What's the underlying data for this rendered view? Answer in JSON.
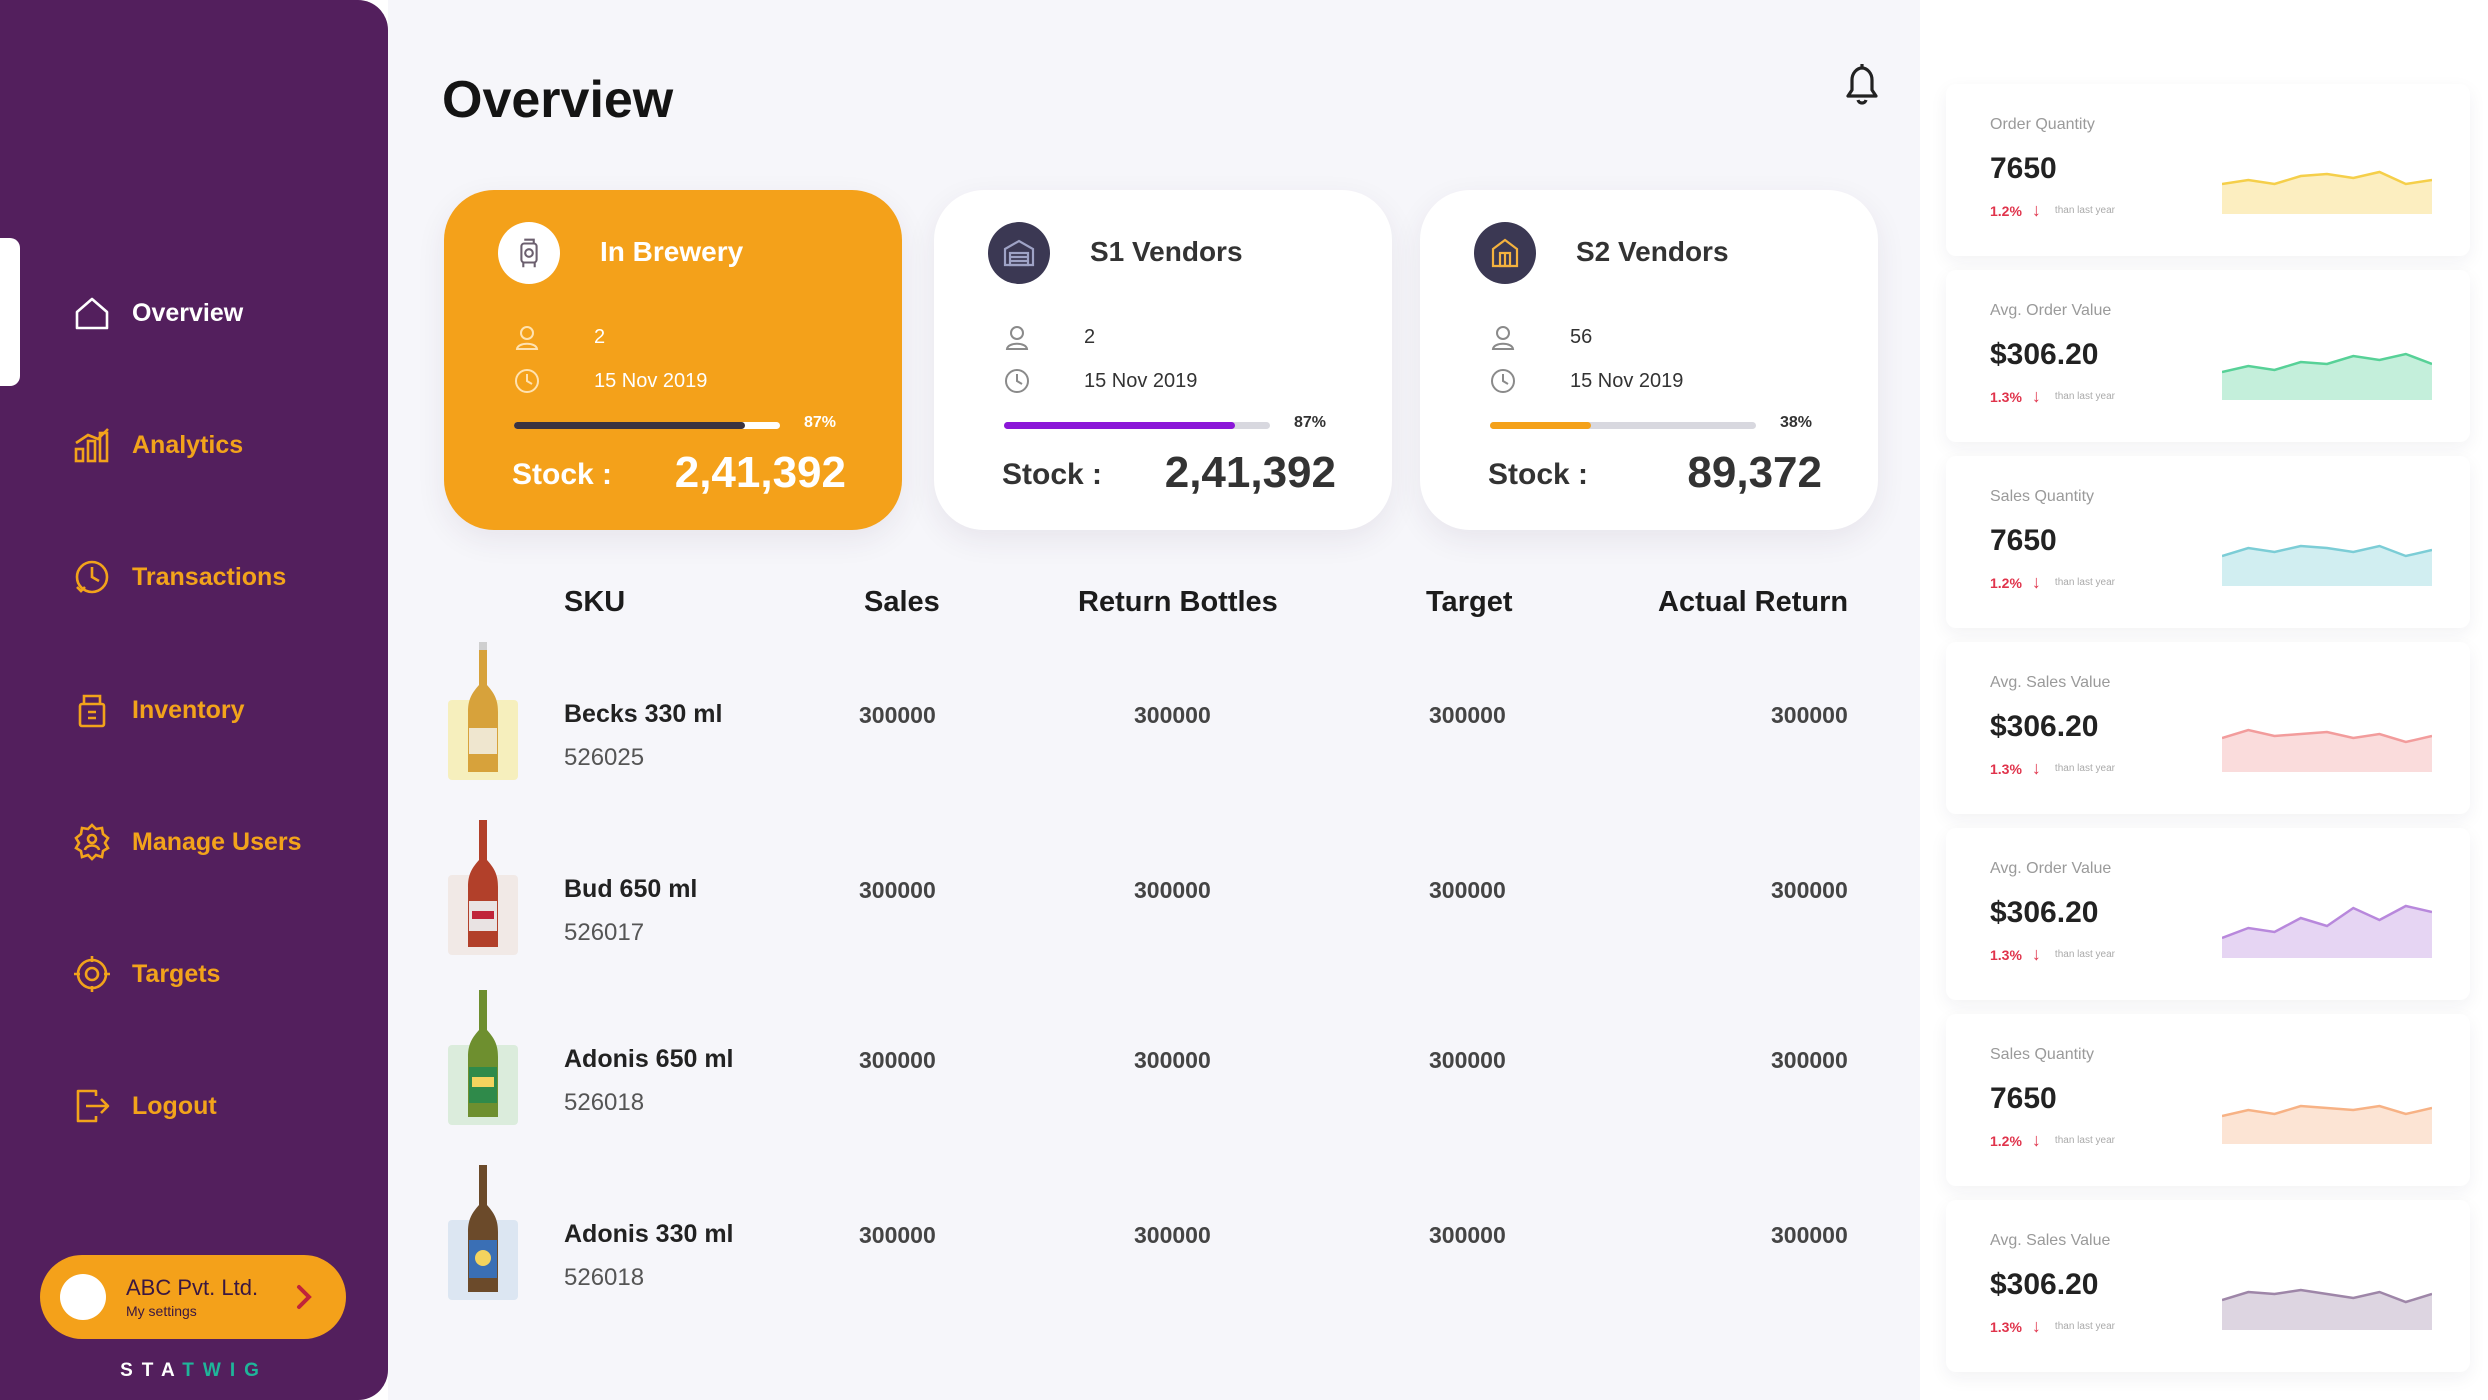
{
  "sidebar": {
    "items": [
      {
        "label": "Overview",
        "icon": "home-icon",
        "active": true
      },
      {
        "label": "Analytics",
        "icon": "analytics-icon",
        "active": false
      },
      {
        "label": "Transactions",
        "icon": "transactions-icon",
        "active": false
      },
      {
        "label": "Inventory",
        "icon": "inventory-icon",
        "active": false
      },
      {
        "label": "Manage Users",
        "icon": "manage-users-icon",
        "active": false
      },
      {
        "label": "Targets",
        "icon": "targets-icon",
        "active": false
      },
      {
        "label": "Logout",
        "icon": "logout-icon",
        "active": false
      }
    ],
    "account": {
      "name": "ABC Pvt. Ltd.",
      "subtitle": "My settings"
    },
    "brand": {
      "prefix": "STA",
      "accent": "TWIG"
    },
    "colors": {
      "background": "#531f5d",
      "accent": "#f4a11a"
    }
  },
  "main": {
    "title": "Overview",
    "cards": [
      {
        "title": "In Brewery",
        "count": "2",
        "date": "15 Nov 2019",
        "progress": 0.87,
        "progress_label": "87%",
        "stock_label": "Stock :",
        "stock_value": "2,41,392",
        "bar_color": "#3b3340",
        "icon": "brewery-icon"
      },
      {
        "title": "S1 Vendors",
        "count": "2",
        "date": "15 Nov 2019",
        "progress": 0.87,
        "progress_label": "87%",
        "stock_label": "Stock :",
        "stock_value": "2,41,392",
        "bar_color": "#8b16d8",
        "icon": "warehouse-icon"
      },
      {
        "title": "S2 Vendors",
        "count": "56",
        "date": "15 Nov 2019",
        "progress": 0.38,
        "progress_label": "38%",
        "stock_label": "Stock :",
        "stock_value": "89,372",
        "bar_color": "#f4a11a",
        "icon": "shop-icon"
      }
    ],
    "table": {
      "headers": [
        "SKU",
        "Sales",
        "Return Bottles",
        "Target",
        "Actual Return"
      ],
      "rows": [
        {
          "name": "Becks 330 ml",
          "code": "526025",
          "sales": "300000",
          "return_bottles": "300000",
          "target": "300000",
          "actual_return": "300000"
        },
        {
          "name": "Bud 650 ml",
          "code": "526017",
          "sales": "300000",
          "return_bottles": "300000",
          "target": "300000",
          "actual_return": "300000"
        },
        {
          "name": "Adonis 650 ml",
          "code": "526018",
          "sales": "300000",
          "return_bottles": "300000",
          "target": "300000",
          "actual_return": "300000"
        },
        {
          "name": "Adonis 330 ml",
          "code": "526018",
          "sales": "300000",
          "return_bottles": "300000",
          "target": "300000",
          "actual_return": "300000"
        }
      ]
    }
  },
  "stats": [
    {
      "label": "Order Quantity",
      "value": "7650",
      "change": "1.2%",
      "note": "than last year",
      "color": "#f5cf4a"
    },
    {
      "label": "Avg. Order Value",
      "value": "$306.20",
      "change": "1.3%",
      "note": "than last year",
      "color": "#57d197"
    },
    {
      "label": "Sales Quantity",
      "value": "7650",
      "change": "1.2%",
      "note": "than last year",
      "color": "#7ccdd6"
    },
    {
      "label": "Avg. Sales Value",
      "value": "$306.20",
      "change": "1.3%",
      "note": "than last year",
      "color": "#f29c9c"
    },
    {
      "label": "Avg. Order Value",
      "value": "$306.20",
      "change": "1.3%",
      "note": "than last year",
      "color": "#b888dc"
    },
    {
      "label": "Sales Quantity",
      "value": "7650",
      "change": "1.2%",
      "note": "than last year",
      "color": "#f7b285"
    },
    {
      "label": "Avg. Sales Value",
      "value": "$306.20",
      "change": "1.3%",
      "note": "than last year",
      "color": "#9e86a8"
    }
  ]
}
